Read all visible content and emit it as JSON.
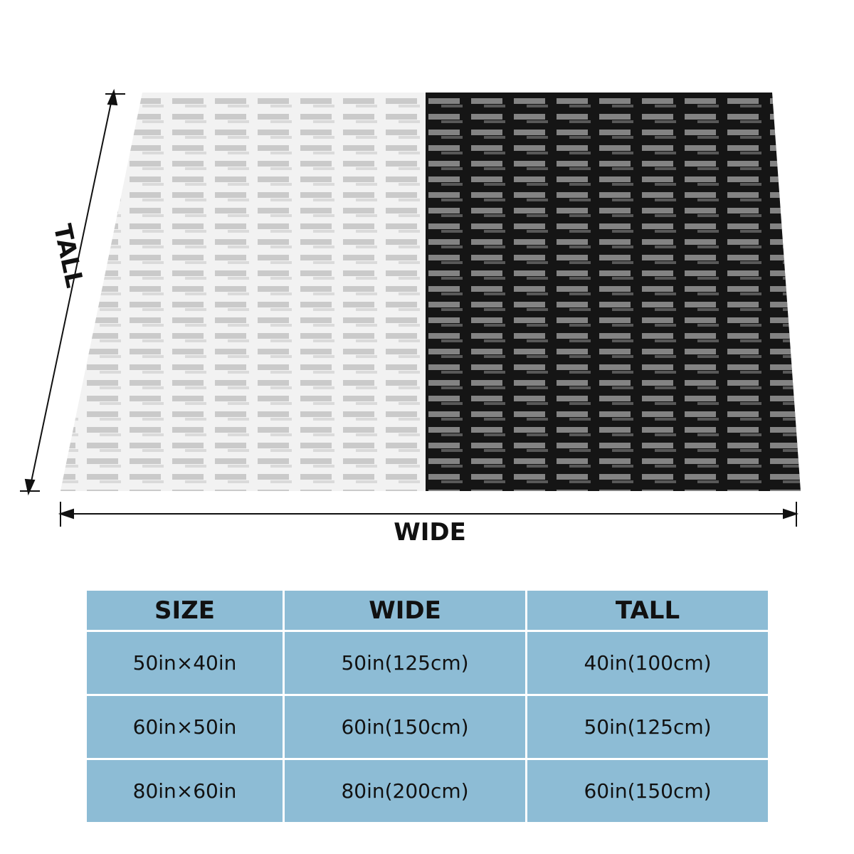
{
  "figure": {
    "tall_label": "TALL",
    "wide_label": "WIDE"
  },
  "table": {
    "header": [
      "SIZE",
      "WIDE",
      "TALL"
    ],
    "rows": [
      [
        "50in×40in",
        "50in(125cm)",
        "40in(100cm)"
      ],
      [
        "60in×50in",
        "60in(150cm)",
        "50in(125cm)"
      ],
      [
        "80in×60in",
        "80in(200cm)",
        "60in(150cm)"
      ]
    ]
  }
}
